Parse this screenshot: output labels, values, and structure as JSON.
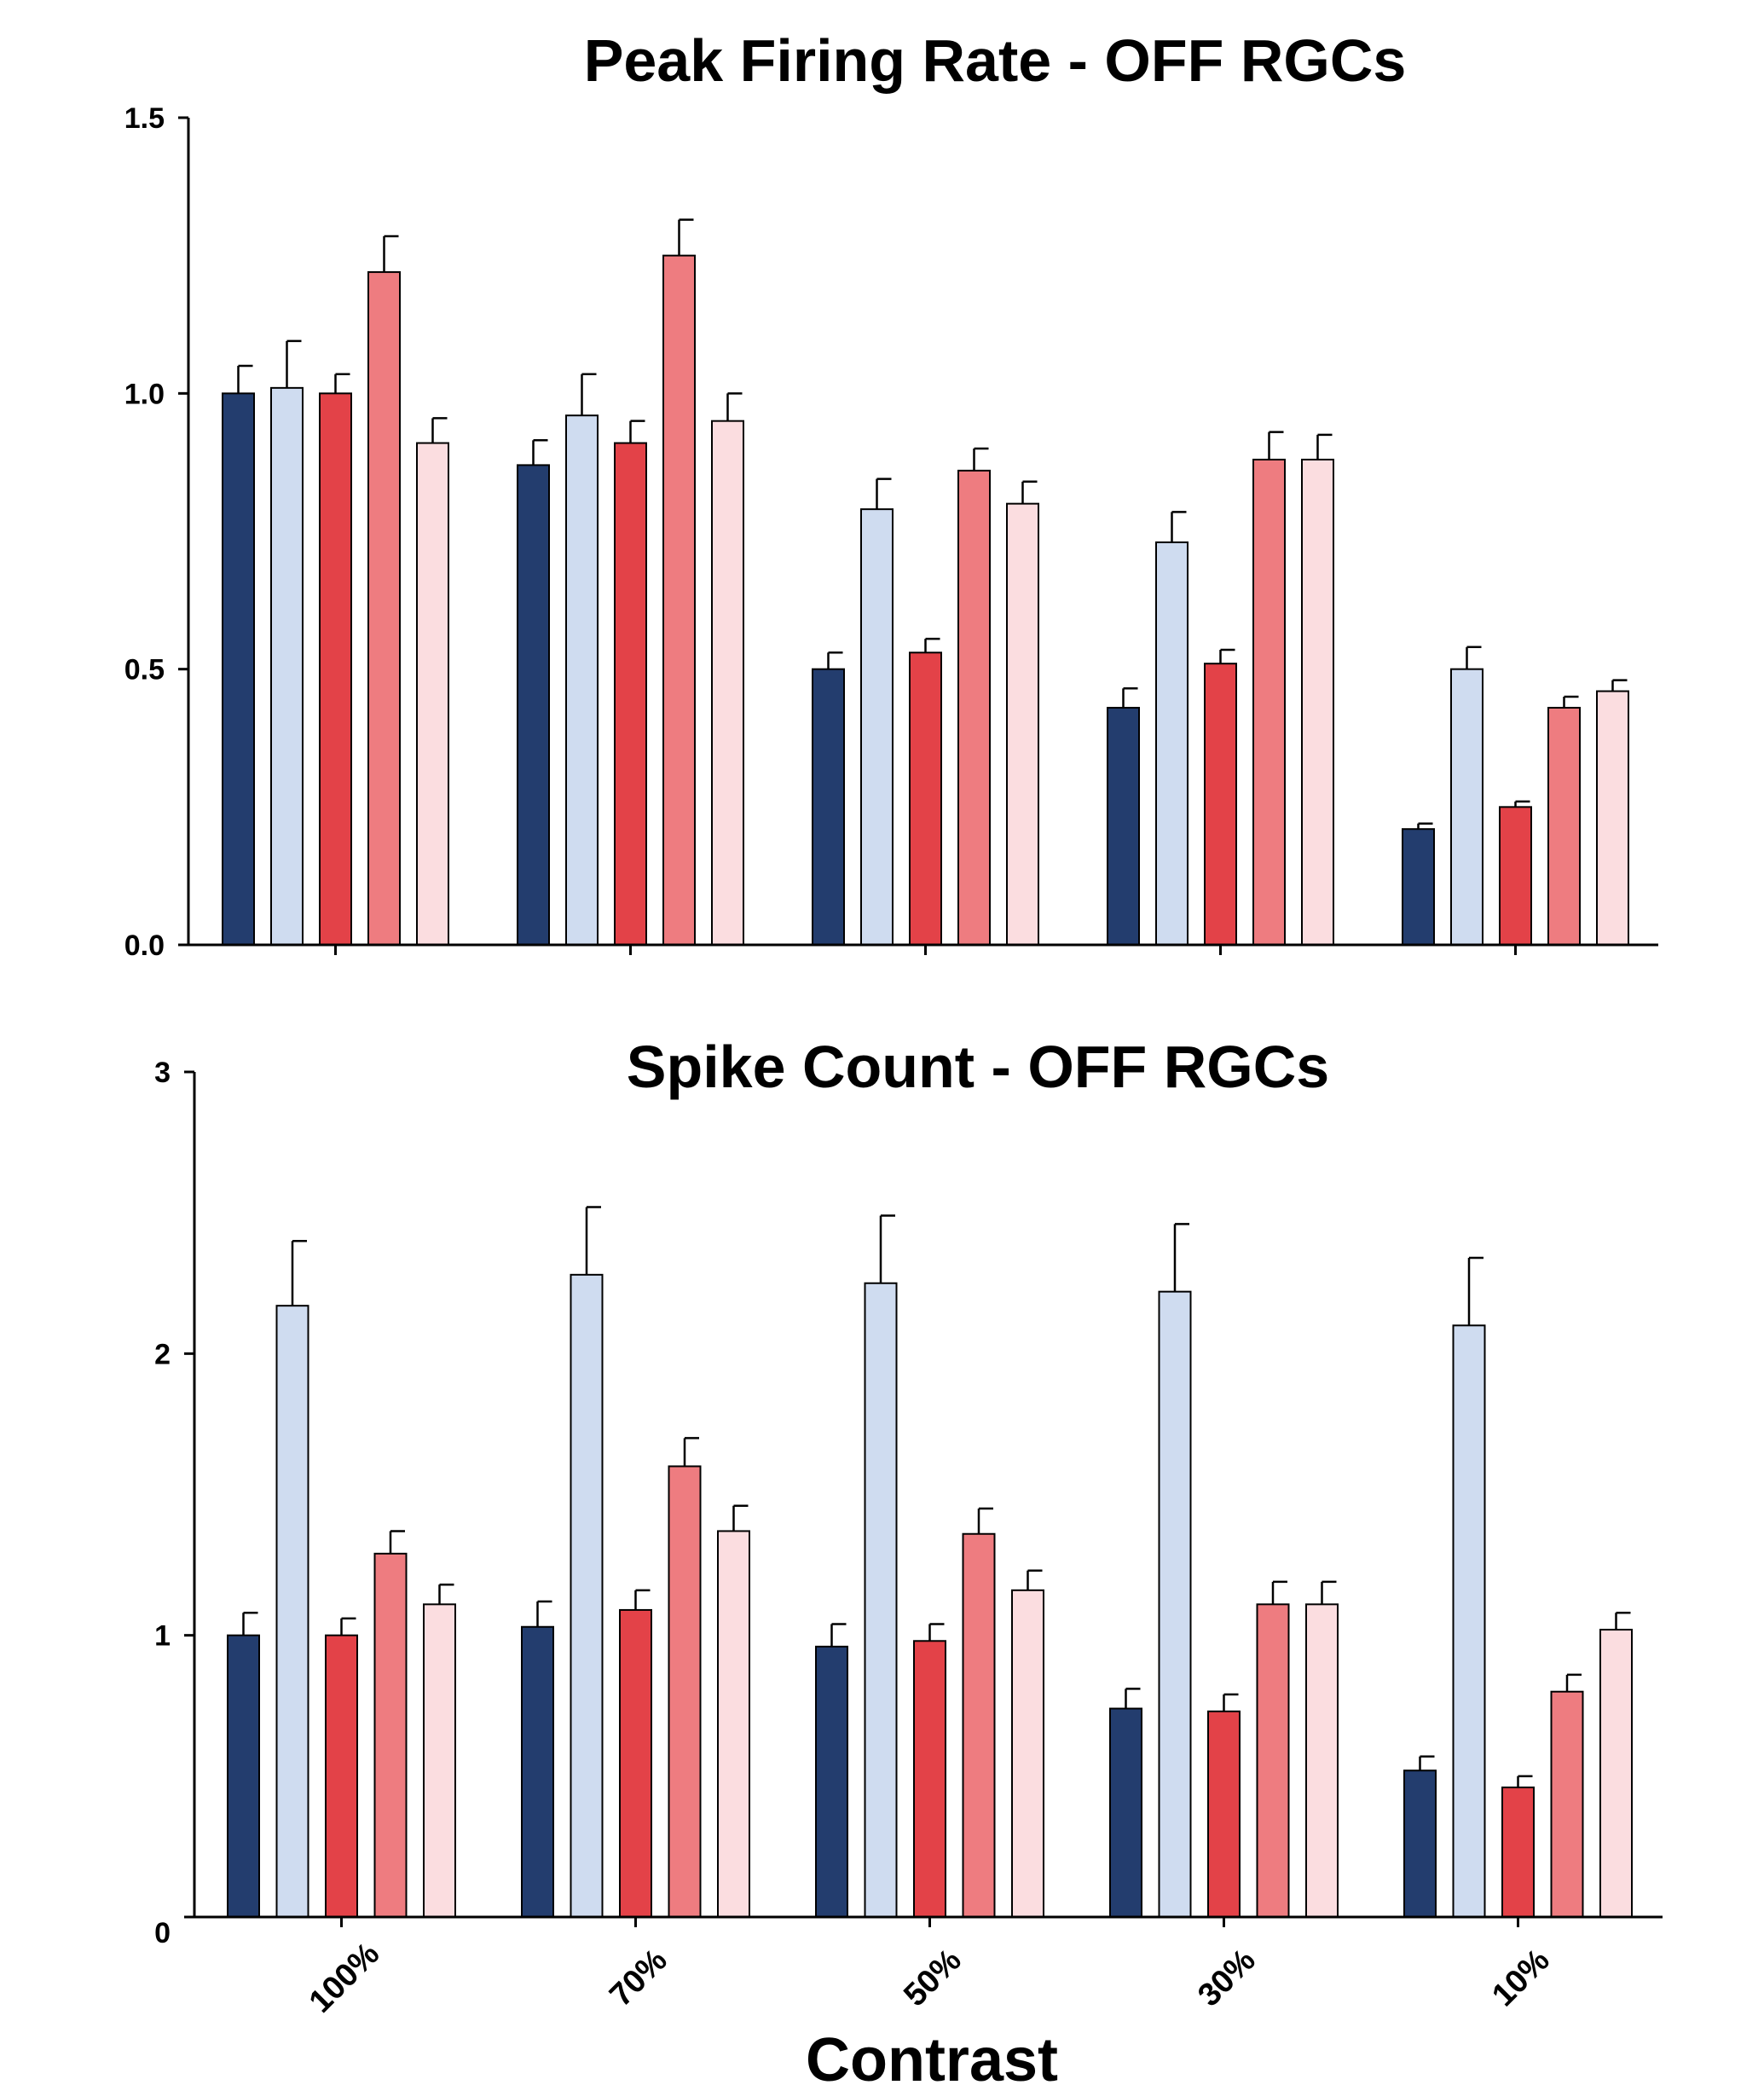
{
  "chart_data": [
    {
      "type": "bar",
      "title": "Peak Firing Rate - OFF RGCs",
      "xlabel": "",
      "ylabel": "",
      "categories": [
        "100%",
        "70%",
        "50%",
        "30%",
        "10%"
      ],
      "show_category_labels": false,
      "ylim": [
        0,
        1.5
      ],
      "yticks": [
        0.0,
        0.5,
        1.0,
        1.5
      ],
      "ytick_labels": [
        "0.0",
        "0.5",
        "1.0",
        "1.5"
      ],
      "grid": false,
      "series": [
        {
          "color": "#233d6e",
          "values": [
            1.0,
            0.87,
            0.5,
            0.43,
            0.21
          ],
          "errors": [
            0.05,
            0.045,
            0.03,
            0.035,
            0.01
          ]
        },
        {
          "color": "#cfdcf0",
          "values": [
            1.01,
            0.96,
            0.79,
            0.73,
            0.5
          ],
          "errors": [
            0.085,
            0.075,
            0.055,
            0.055,
            0.04
          ]
        },
        {
          "color": "#e34248",
          "values": [
            1.0,
            0.91,
            0.53,
            0.51,
            0.25
          ],
          "errors": [
            0.035,
            0.04,
            0.025,
            0.025,
            0.01
          ]
        },
        {
          "color": "#ee7c80",
          "values": [
            1.22,
            1.25,
            0.86,
            0.88,
            0.43
          ],
          "errors": [
            0.065,
            0.065,
            0.04,
            0.05,
            0.02
          ]
        },
        {
          "color": "#fbdde0",
          "values": [
            0.91,
            0.95,
            0.8,
            0.88,
            0.46
          ],
          "errors": [
            0.045,
            0.05,
            0.04,
            0.045,
            0.02
          ]
        }
      ]
    },
    {
      "type": "bar",
      "title": "Spike Count - OFF RGCs",
      "xlabel": "Contrast",
      "ylabel": "",
      "categories": [
        "100%",
        "70%",
        "50%",
        "30%",
        "10%"
      ],
      "show_category_labels": true,
      "ylim": [
        0,
        3
      ],
      "yticks": [
        0,
        1,
        2,
        3
      ],
      "ytick_labels": [
        "0",
        "1",
        "2",
        "3"
      ],
      "grid": false,
      "series": [
        {
          "color": "#233d6e",
          "values": [
            1.0,
            1.03,
            0.96,
            0.74,
            0.52
          ],
          "errors": [
            0.08,
            0.09,
            0.08,
            0.07,
            0.05
          ]
        },
        {
          "color": "#cfdcf0",
          "values": [
            2.17,
            2.28,
            2.25,
            2.22,
            2.1
          ],
          "errors": [
            0.23,
            0.24,
            0.24,
            0.24,
            0.24
          ]
        },
        {
          "color": "#e34248",
          "values": [
            1.0,
            1.09,
            0.98,
            0.73,
            0.46
          ],
          "errors": [
            0.06,
            0.07,
            0.06,
            0.06,
            0.04
          ]
        },
        {
          "color": "#ee7c80",
          "values": [
            1.29,
            1.6,
            1.36,
            1.11,
            0.8
          ],
          "errors": [
            0.08,
            0.1,
            0.09,
            0.08,
            0.06
          ]
        },
        {
          "color": "#fbdde0",
          "values": [
            1.11,
            1.37,
            1.16,
            1.11,
            1.02
          ],
          "errors": [
            0.07,
            0.09,
            0.07,
            0.08,
            0.06
          ]
        }
      ]
    }
  ]
}
